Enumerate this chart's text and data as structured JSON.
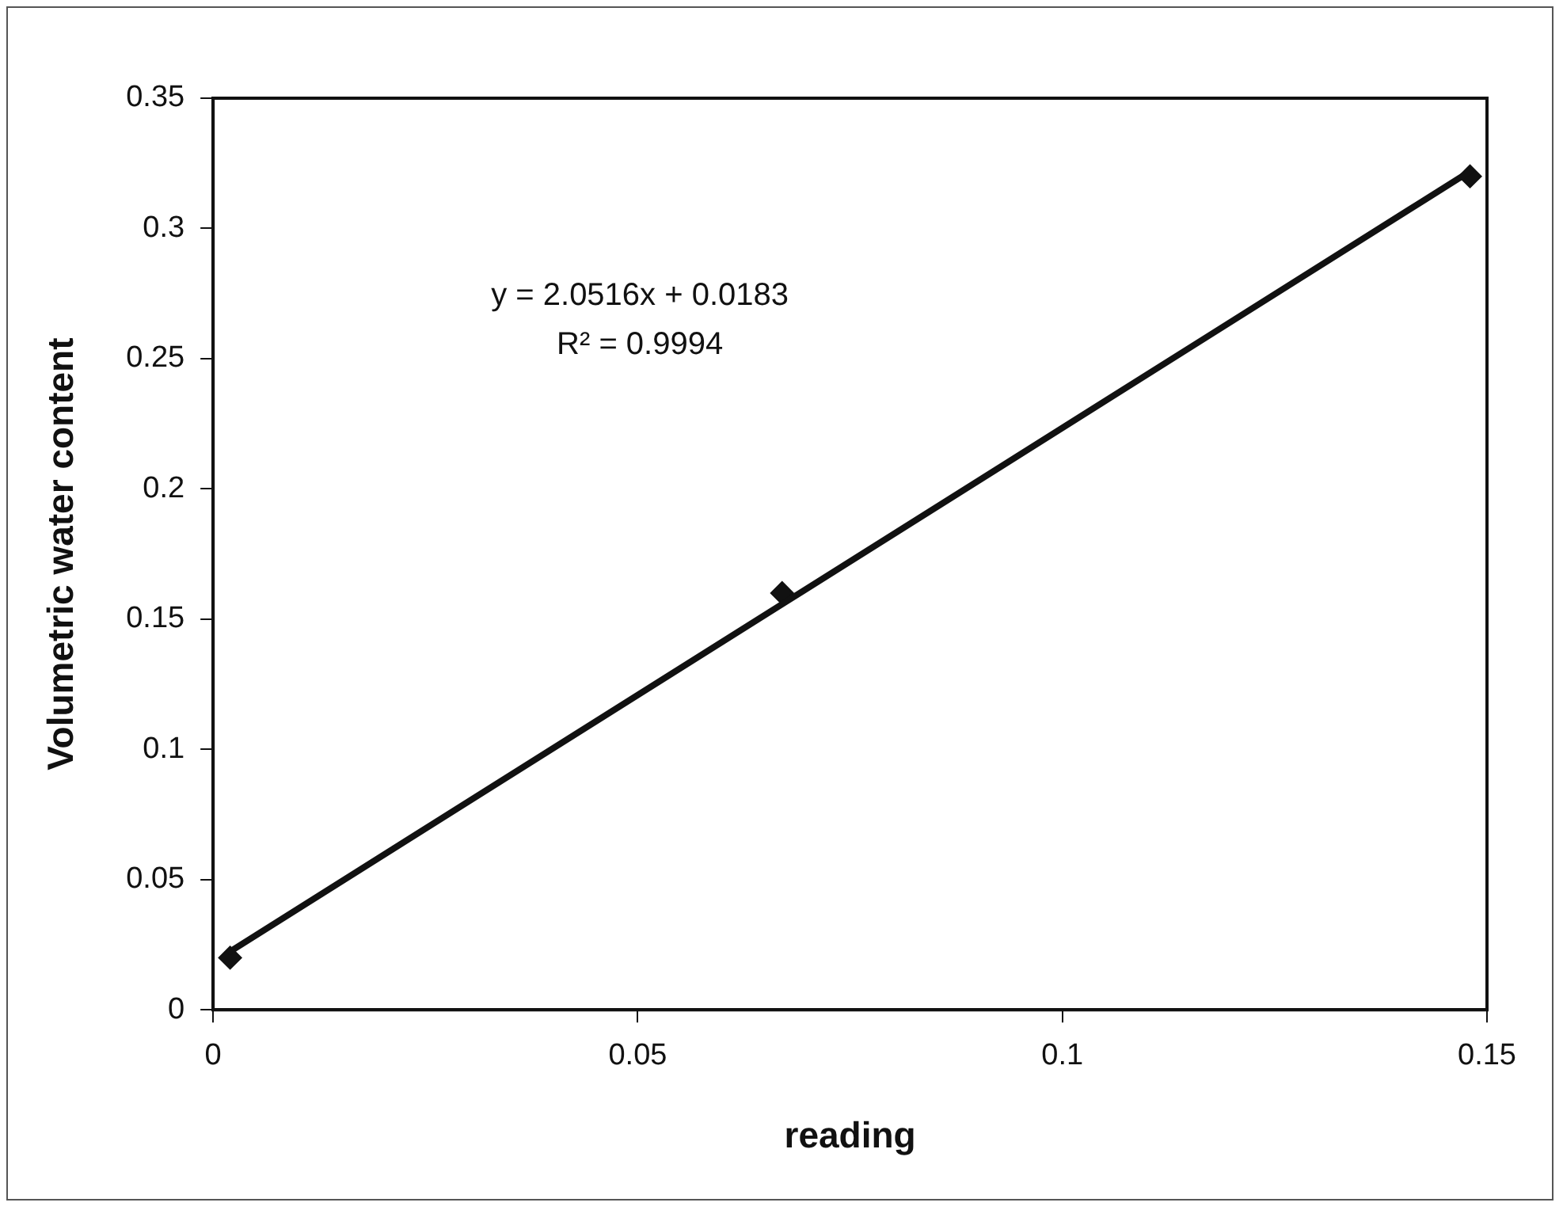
{
  "chart_data": {
    "type": "scatter",
    "xlabel": "reading",
    "ylabel": "Volumetric water content",
    "xlim": [
      0,
      0.15
    ],
    "xticks": [
      0,
      0.05,
      0.1,
      0.15
    ],
    "ylim": [
      0,
      0.35
    ],
    "yticks": [
      0,
      0.05,
      0.1,
      0.15,
      0.2,
      0.25,
      0.3,
      0.35
    ],
    "grid": false,
    "legend": false,
    "marker": "diamond",
    "series": [
      {
        "color": "#111111",
        "x": [
          0.002,
          0.067,
          0.148
        ],
        "values": [
          0.02,
          0.16,
          0.32
        ]
      },
      {
        "type": "line",
        "color": "#111111",
        "x": [
          0.002,
          0.148
        ],
        "values": [
          0.0224,
          0.3219
        ],
        "marker": "none"
      }
    ],
    "annotations": [
      "y = 2.0516x + 0.0183",
      "R² = 0.9994"
    ]
  }
}
